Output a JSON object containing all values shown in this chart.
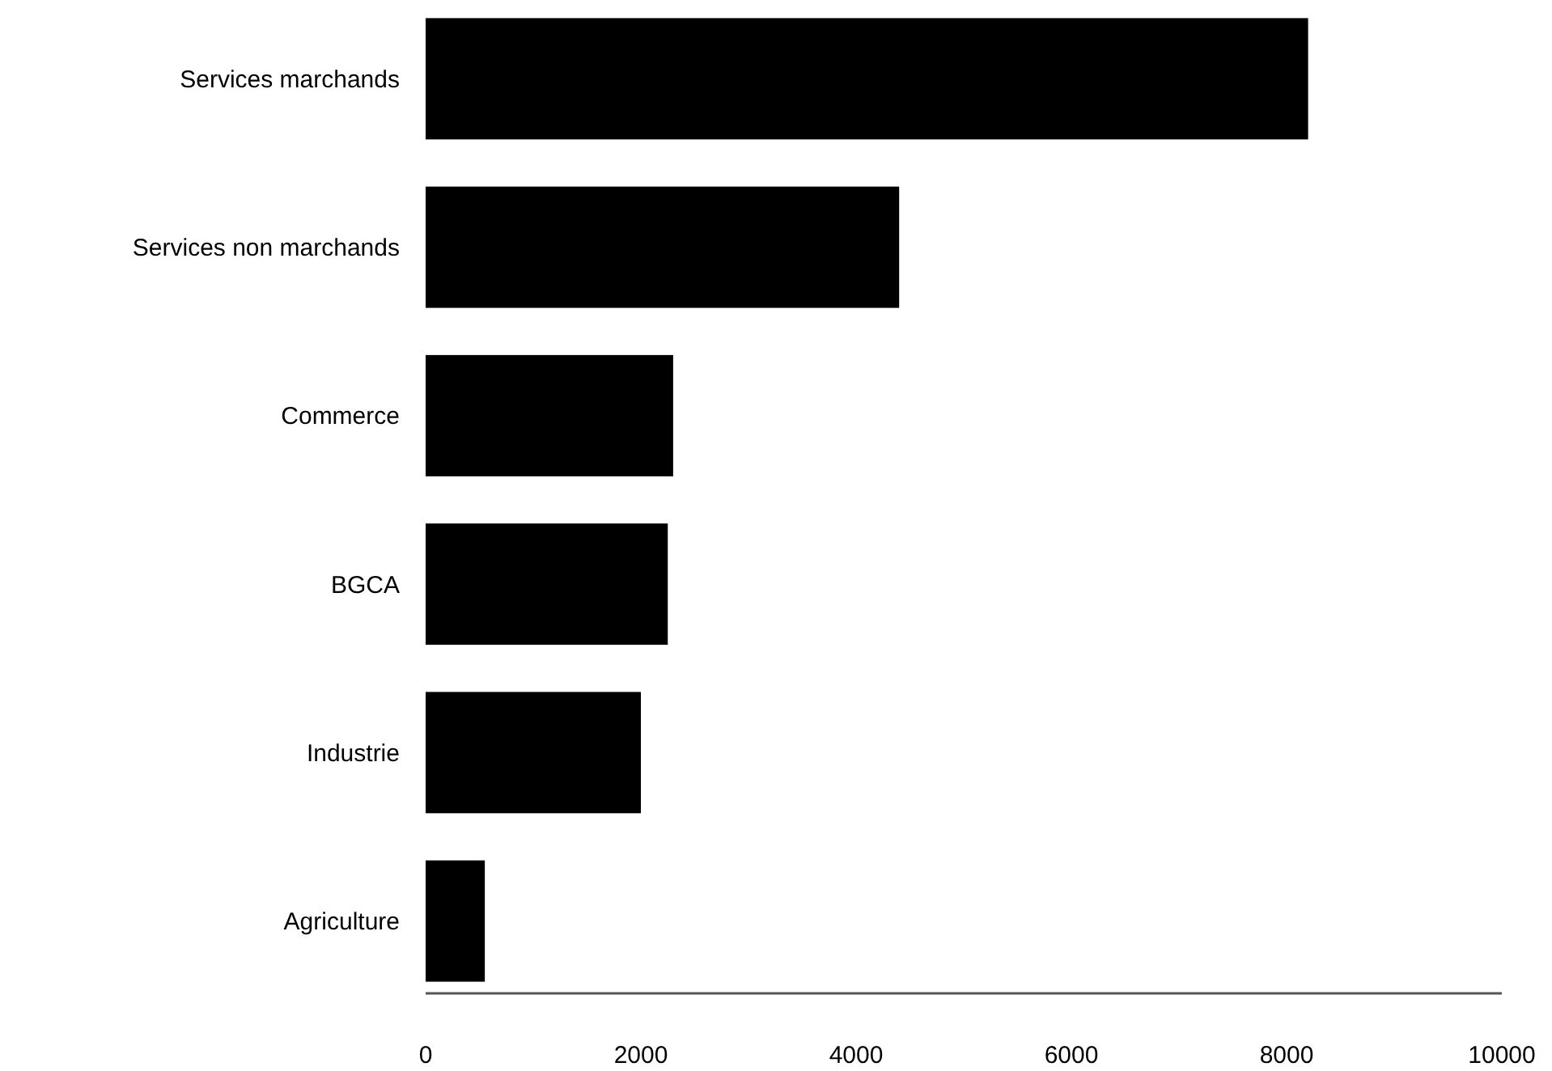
{
  "chart_data": {
    "type": "bar",
    "orientation": "horizontal",
    "categories": [
      "Services marchands",
      "Services non marchands",
      "Commerce",
      "BGCA",
      "Industrie",
      "Agriculture"
    ],
    "values": [
      8200,
      4400,
      2300,
      2250,
      2000,
      550
    ],
    "color": "#000000",
    "xlim": [
      0,
      10000
    ],
    "xticks": [
      0,
      2000,
      4000,
      6000,
      8000,
      10000
    ]
  }
}
